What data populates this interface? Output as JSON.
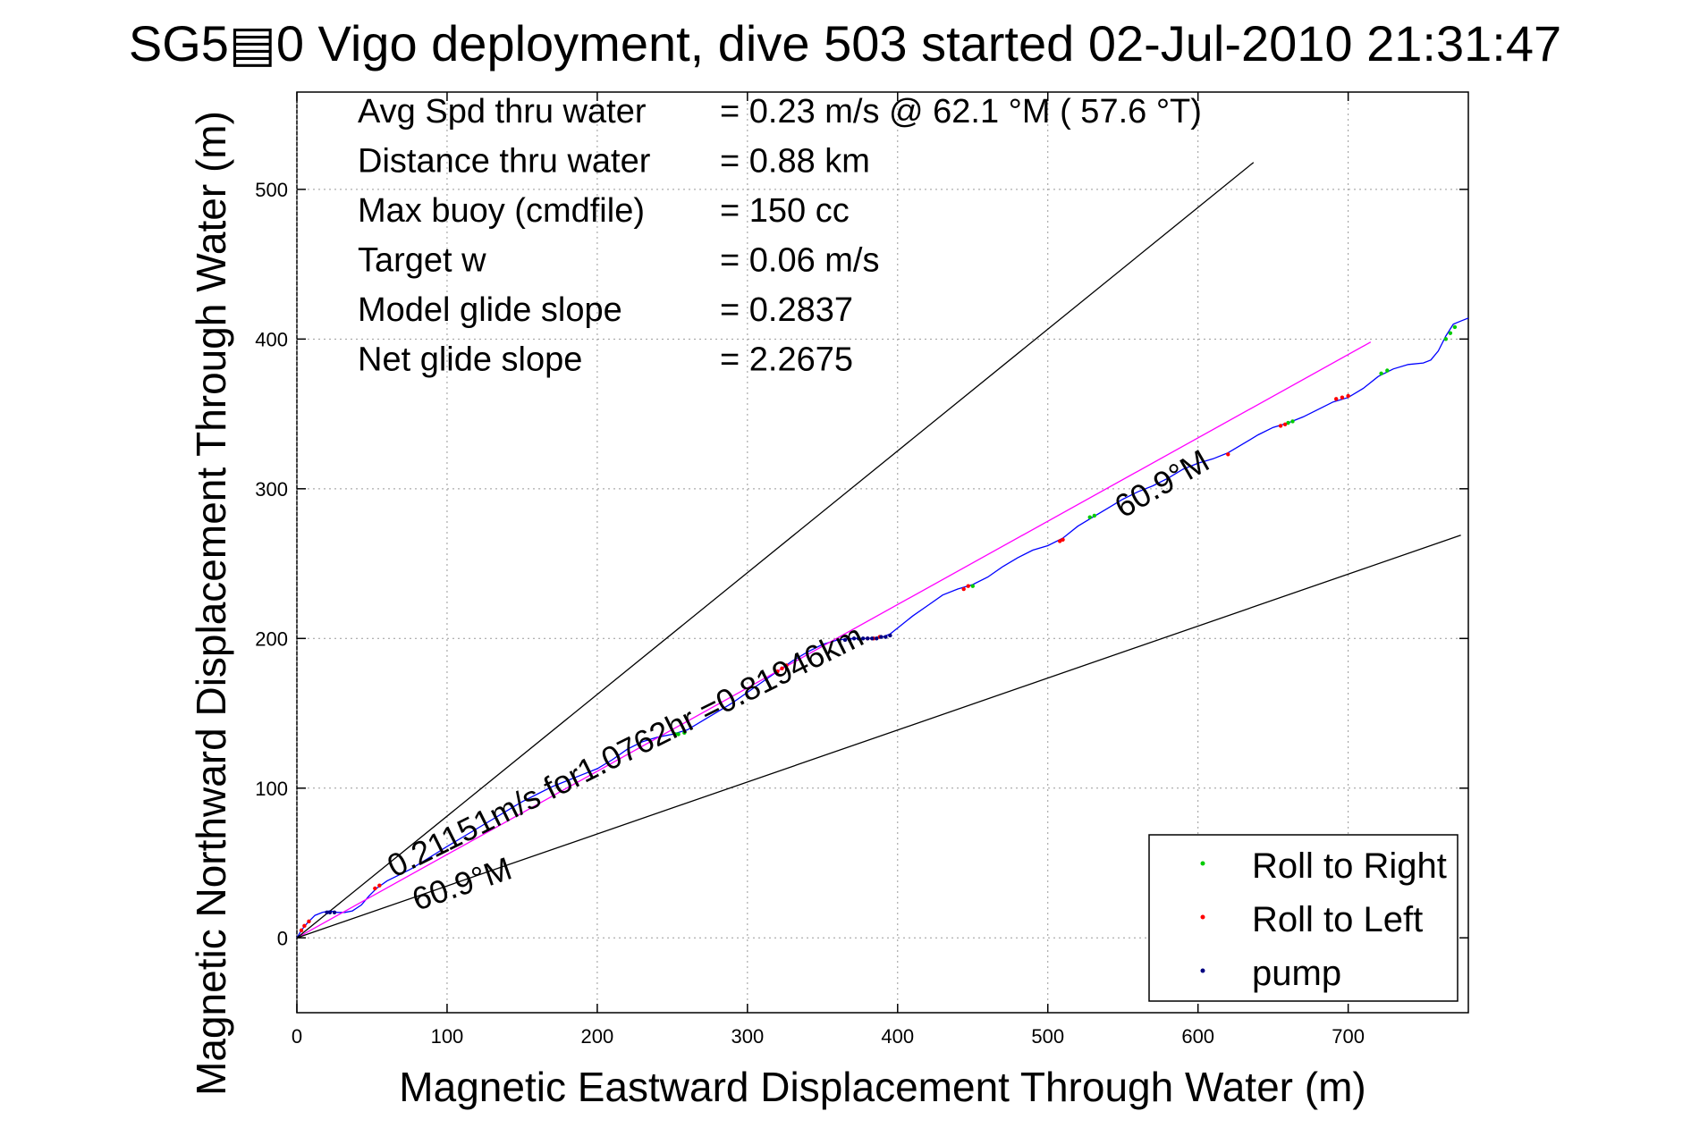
{
  "chart_data": {
    "type": "line",
    "title": "SG5▤0 Vigo deployment, dive 503 started 02-Jul-2010 21:31:47",
    "xlabel": "Magnetic Eastward Displacement Through Water (m)",
    "ylabel": "Magnetic Northward Displacement Through Water (m)",
    "xlim": [
      0,
      780
    ],
    "ylim": [
      -50,
      565
    ],
    "xticks": [
      0,
      100,
      200,
      300,
      400,
      500,
      600,
      700
    ],
    "yticks": [
      0,
      100,
      200,
      300,
      400,
      500
    ],
    "grid": true,
    "legend_position": "bottom-right",
    "info_lines": [
      {
        "label": "Avg Spd thru water",
        "value": "=  0.23 m/s @  62.1 °M ( 57.6 °T)"
      },
      {
        "label": "Distance thru water",
        "value": "=  0.88 km"
      },
      {
        "label": "Max buoy (cmdfile)",
        "value": "= 150 cc"
      },
      {
        "label": "Target w",
        "value": "= 0.06 m/s"
      },
      {
        "label": "Model glide slope",
        "value": "= 0.2837"
      },
      {
        "label": "Net glide slope",
        "value": "= 2.2675"
      }
    ],
    "annotations": [
      {
        "text": "0.21151m/s for1.0762hr =0.81946km",
        "x": 65,
        "y": 40,
        "angle_deg": 26.5
      },
      {
        "text": "60.9°M",
        "x": 80,
        "y": 18,
        "angle_deg": 19
      },
      {
        "text": "60.9°M",
        "x": 550,
        "y": 280,
        "angle_deg": 30
      }
    ],
    "series": [
      {
        "name": "track",
        "color": "#0000ff",
        "points": [
          [
            0,
            0
          ],
          [
            3,
            5
          ],
          [
            7,
            10
          ],
          [
            12,
            15
          ],
          [
            17,
            17
          ],
          [
            22,
            18
          ],
          [
            27,
            17
          ],
          [
            32,
            17
          ],
          [
            37,
            18
          ],
          [
            43,
            22
          ],
          [
            48,
            28
          ],
          [
            53,
            33
          ],
          [
            60,
            38
          ],
          [
            68,
            42
          ],
          [
            76,
            46
          ],
          [
            84,
            51
          ],
          [
            92,
            56
          ],
          [
            100,
            61
          ],
          [
            110,
            67
          ],
          [
            120,
            73
          ],
          [
            130,
            79
          ],
          [
            140,
            85
          ],
          [
            150,
            91
          ],
          [
            160,
            96
          ],
          [
            170,
            101
          ],
          [
            180,
            105
          ],
          [
            190,
            109
          ],
          [
            200,
            113
          ],
          [
            210,
            119
          ],
          [
            220,
            126
          ],
          [
            230,
            131
          ],
          [
            240,
            134
          ],
          [
            250,
            136
          ],
          [
            260,
            139
          ],
          [
            270,
            145
          ],
          [
            280,
            151
          ],
          [
            290,
            157
          ],
          [
            300,
            164
          ],
          [
            310,
            171
          ],
          [
            320,
            178
          ],
          [
            330,
            185
          ],
          [
            340,
            191
          ],
          [
            350,
            196
          ],
          [
            360,
            199
          ],
          [
            370,
            200
          ],
          [
            380,
            200
          ],
          [
            390,
            201
          ],
          [
            395,
            203
          ],
          [
            400,
            207
          ],
          [
            410,
            215
          ],
          [
            420,
            222
          ],
          [
            430,
            229
          ],
          [
            440,
            233
          ],
          [
            450,
            236
          ],
          [
            460,
            241
          ],
          [
            470,
            248
          ],
          [
            480,
            254
          ],
          [
            490,
            259
          ],
          [
            500,
            262
          ],
          [
            510,
            267
          ],
          [
            520,
            275
          ],
          [
            530,
            281
          ],
          [
            540,
            287
          ],
          [
            550,
            293
          ],
          [
            560,
            298
          ],
          [
            570,
            302
          ],
          [
            580,
            307
          ],
          [
            590,
            313
          ],
          [
            600,
            317
          ],
          [
            610,
            320
          ],
          [
            620,
            324
          ],
          [
            630,
            330
          ],
          [
            640,
            336
          ],
          [
            650,
            341
          ],
          [
            660,
            344
          ],
          [
            670,
            348
          ],
          [
            680,
            353
          ],
          [
            690,
            358
          ],
          [
            700,
            361
          ],
          [
            710,
            367
          ],
          [
            720,
            375
          ],
          [
            730,
            380
          ],
          [
            740,
            383
          ],
          [
            750,
            384
          ],
          [
            755,
            386
          ],
          [
            760,
            392
          ],
          [
            765,
            402
          ],
          [
            770,
            410
          ],
          [
            775,
            412
          ],
          [
            780,
            414
          ]
        ]
      },
      {
        "name": "net displacement",
        "color": "#ff00ff",
        "points": [
          [
            0,
            0
          ],
          [
            715,
            398
          ]
        ]
      },
      {
        "name": "bound upper",
        "color": "#000000",
        "points": [
          [
            0,
            0
          ],
          [
            637,
            518
          ]
        ]
      },
      {
        "name": "bound lower",
        "color": "#000000",
        "points": [
          [
            0,
            0
          ],
          [
            775,
            269
          ]
        ]
      }
    ],
    "markers": {
      "Roll to Right": {
        "color": "#00cc00",
        "x": [
          254,
          258,
          252,
          450,
          528,
          531,
          660,
          663,
          722,
          726,
          765,
          768,
          771
        ],
        "y": [
          136,
          137,
          136,
          235,
          281,
          282,
          344,
          345,
          377,
          379,
          400,
          404,
          408
        ]
      },
      "Roll to Left": {
        "color": "#ff0000",
        "x": [
          3,
          5,
          8,
          52,
          55,
          320,
          323,
          326,
          380,
          384,
          388,
          444,
          447,
          508,
          510,
          620,
          655,
          658,
          692,
          696,
          700
        ],
        "y": [
          5,
          8,
          11,
          33,
          35,
          178,
          180,
          182,
          200,
          200,
          201,
          233,
          235,
          265,
          266,
          323,
          342,
          343,
          360,
          361,
          362
        ]
      },
      "pump": {
        "color": "#000080",
        "x": [
          365,
          368,
          371,
          374,
          377,
          380,
          383,
          386,
          389,
          392,
          395,
          20,
          22,
          25
        ],
        "y": [
          199,
          199,
          200,
          200,
          200,
          200,
          200,
          200,
          201,
          201,
          202,
          17,
          17,
          17
        ]
      }
    },
    "legend": [
      "Roll to Right",
      "Roll to Left",
      "pump"
    ]
  }
}
